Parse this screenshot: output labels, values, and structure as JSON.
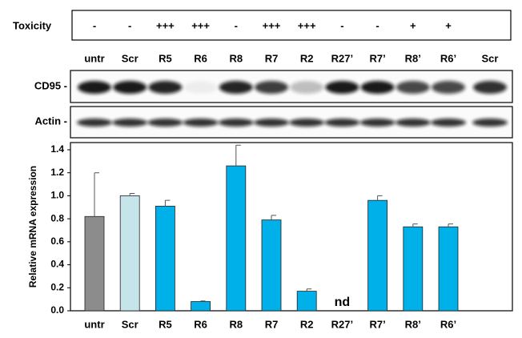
{
  "toxicity": {
    "label": "Toxicity",
    "values": [
      "-",
      "-",
      "+++",
      "+++",
      "-",
      "+++",
      "+++",
      "-",
      "-",
      "+",
      "+"
    ]
  },
  "blot": {
    "lanes": [
      "untr",
      "Scr",
      "R5",
      "R6",
      "R8",
      "R7",
      "R2",
      "R27’",
      "R7’",
      "R8’",
      "R6’",
      "Scr"
    ],
    "rows": [
      "CD95 -",
      "Actin -"
    ]
  },
  "chart_data": {
    "type": "bar",
    "y_label": "Relative mRNA expression",
    "categories": [
      "untr",
      "Scr",
      "R5",
      "R6",
      "R8",
      "R7",
      "R2",
      "R27’",
      "R7’",
      "R8’",
      "R6’"
    ],
    "values": [
      0.82,
      1.0,
      0.91,
      0.08,
      1.26,
      0.79,
      0.17,
      null,
      0.96,
      0.73,
      0.73
    ],
    "errors": [
      0.38,
      0.02,
      0.05,
      0.005,
      0.18,
      0.04,
      0.02,
      null,
      0.04,
      0.025,
      0.025
    ],
    "colors": [
      "#8c8c8c",
      "#c6e5ea",
      "#00b0e8",
      "#00b0e8",
      "#00b0e8",
      "#00b0e8",
      "#00b0e8",
      "#00b0e8",
      "#00b0e8",
      "#00b0e8",
      "#00b0e8"
    ],
    "annotation": "nd",
    "ylim": [
      0,
      1.4
    ],
    "yticks": [
      {
        "value": 0,
        "label": "0.0"
      },
      0.2,
      0.4,
      0.6,
      0.8,
      {
        "value": 1,
        "label": "1.0"
      },
      1.2,
      1.4
    ]
  }
}
